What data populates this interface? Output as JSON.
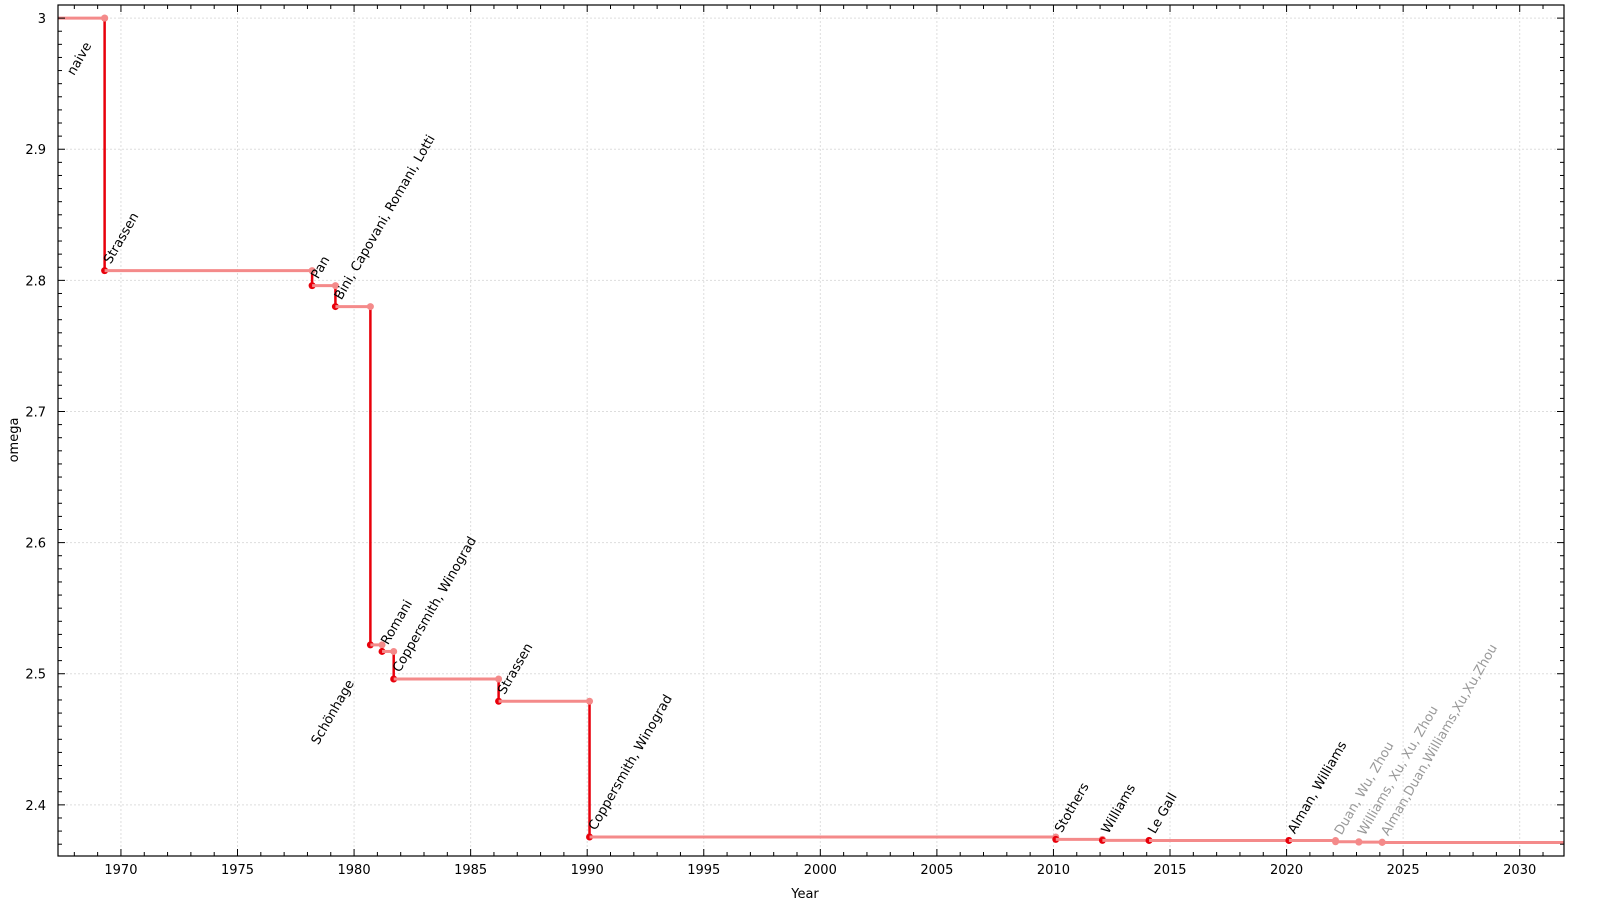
{
  "chart_data": {
    "type": "line",
    "style": "step",
    "title": "",
    "xlabel": "Year",
    "ylabel": "omega",
    "xlim": [
      1967.3,
      2031.9
    ],
    "ylim": [
      2.361,
      3.01
    ],
    "x_ticks": [
      1970,
      1975,
      1980,
      1985,
      1990,
      1995,
      2000,
      2005,
      2010,
      2015,
      2020,
      2025,
      2030
    ],
    "y_ticks": [
      2.4,
      2.5,
      2.6,
      2.7,
      2.8,
      2.9,
      3
    ],
    "y_tick_labels": [
      "2.4",
      "2.5",
      "2.6",
      "2.7",
      "2.8",
      "2.9",
      "3"
    ],
    "grid": true,
    "colors": {
      "confirmed": "#e8000b",
      "step": "#f48a8a",
      "unconfirmed_label": "#999999",
      "label": "#000000"
    },
    "start": {
      "label": "naive",
      "x": 1967.3,
      "y": 3.0
    },
    "points": [
      {
        "label": "naive",
        "x": 1969.3,
        "y": 3.0,
        "confirmed": true
      },
      {
        "label": "Strassen",
        "x": 1969.3,
        "y": 2.8074,
        "confirmed": true
      },
      {
        "label": "Pan",
        "x": 1978.2,
        "y": 2.796,
        "confirmed": true
      },
      {
        "label": "Bini, Capovani, Romani, Lotti",
        "x": 1979.2,
        "y": 2.78,
        "confirmed": true
      },
      {
        "label": "Schönhage",
        "x": 1980.7,
        "y": 2.522,
        "confirmed": true,
        "label_side": "below-left"
      },
      {
        "label": "Romani",
        "x": 1981.2,
        "y": 2.517,
        "confirmed": true
      },
      {
        "label": "Coppersmith, Winograd",
        "x": 1981.7,
        "y": 2.496,
        "confirmed": true
      },
      {
        "label": "Strassen",
        "x": 1986.2,
        "y": 2.479,
        "confirmed": true
      },
      {
        "label": "Coppersmith, Winograd",
        "x": 1990.1,
        "y": 2.3755,
        "confirmed": true
      },
      {
        "label": "Stothers",
        "x": 2010.1,
        "y": 2.3737,
        "confirmed": true
      },
      {
        "label": "Williams",
        "x": 2012.1,
        "y": 2.3729,
        "confirmed": true
      },
      {
        "label": "Le Gall",
        "x": 2014.1,
        "y": 2.3728639,
        "confirmed": true
      },
      {
        "label": "Alman, Williams",
        "x": 2020.1,
        "y": 2.3728596,
        "confirmed": true
      },
      {
        "label": "Duan, Wu, Zhou",
        "x": 2022.1,
        "y": 2.371866,
        "confirmed": false
      },
      {
        "label": "Williams, Xu, Xu, Zhou",
        "x": 2023.1,
        "y": 2.371552,
        "confirmed": false
      },
      {
        "label": "Alman,Duan,Williams,Xu,Xu,Zhou",
        "x": 2024.1,
        "y": 2.371339,
        "confirmed": false
      }
    ]
  }
}
